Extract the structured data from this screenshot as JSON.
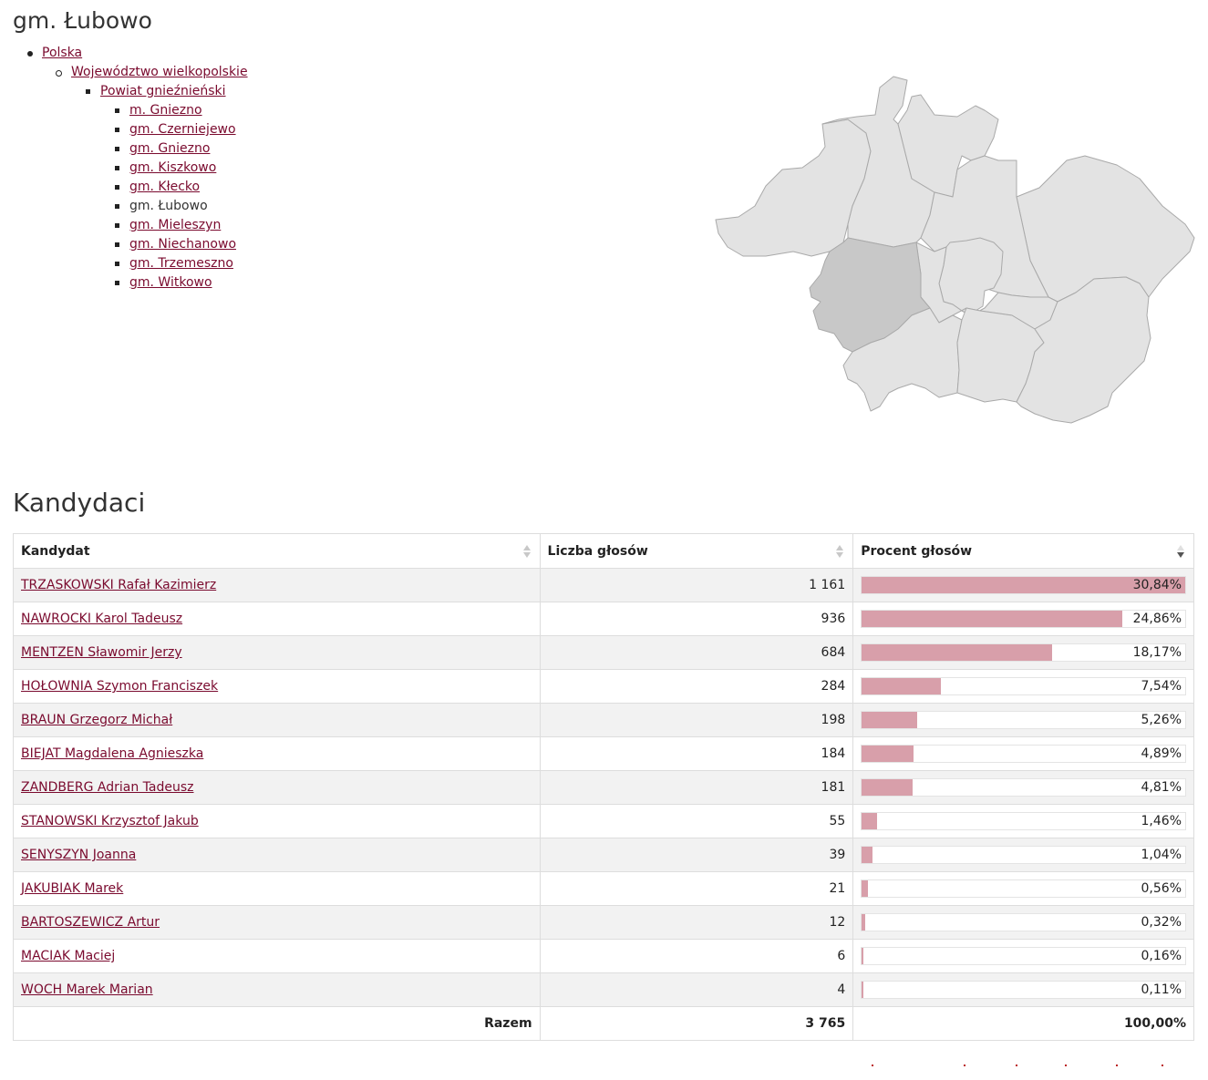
{
  "page": {
    "title": "gm. Łubowo"
  },
  "breadcrumb": {
    "country": "Polska",
    "voivodeship": "Województwo wielkopolskie",
    "county": "Powiat gnieźnieński",
    "communes": [
      {
        "label": "m. Gniezno",
        "link": true
      },
      {
        "label": "gm. Czerniejewo",
        "link": true
      },
      {
        "label": "gm. Gniezno",
        "link": true
      },
      {
        "label": "gm. Kiszkowo",
        "link": true
      },
      {
        "label": "gm. Kłecko",
        "link": true
      },
      {
        "label": "gm. Łubowo",
        "link": false
      },
      {
        "label": "gm. Mieleszyn",
        "link": true
      },
      {
        "label": "gm. Niechanowo",
        "link": true
      },
      {
        "label": "gm. Trzemeszno",
        "link": true
      },
      {
        "label": "gm. Witkowo",
        "link": true
      }
    ]
  },
  "map": {
    "fill_default": "#e3e3e3",
    "fill_selected": "#c8c8c8",
    "stroke": "#a9a9a9"
  },
  "section": {
    "title": "Kandydaci"
  },
  "table": {
    "headers": {
      "candidate": "Kandydat",
      "votes": "Liczba głosów",
      "percent": "Procent głosów"
    },
    "rows": [
      {
        "name": "TRZASKOWSKI Rafał Kazimierz",
        "votes": "1 161",
        "percent": "30,84%",
        "share": 30.84
      },
      {
        "name": "NAWROCKI Karol Tadeusz",
        "votes": "936",
        "percent": "24,86%",
        "share": 24.86
      },
      {
        "name": "MENTZEN Sławomir Jerzy",
        "votes": "684",
        "percent": "18,17%",
        "share": 18.17
      },
      {
        "name": "HOŁOWNIA Szymon Franciszek",
        "votes": "284",
        "percent": "7,54%",
        "share": 7.54
      },
      {
        "name": "BRAUN Grzegorz Michał",
        "votes": "198",
        "percent": "5,26%",
        "share": 5.26
      },
      {
        "name": "BIEJAT Magdalena Agnieszka",
        "votes": "184",
        "percent": "4,89%",
        "share": 4.89
      },
      {
        "name": "ZANDBERG Adrian Tadeusz",
        "votes": "181",
        "percent": "4,81%",
        "share": 4.81
      },
      {
        "name": "STANOWSKI Krzysztof Jakub",
        "votes": "55",
        "percent": "1,46%",
        "share": 1.46
      },
      {
        "name": "SENYSZYN Joanna",
        "votes": "39",
        "percent": "1,04%",
        "share": 1.04
      },
      {
        "name": "JAKUBIAK Marek",
        "votes": "21",
        "percent": "0,56%",
        "share": 0.56
      },
      {
        "name": "BARTOSZEWICZ Artur",
        "votes": "12",
        "percent": "0,32%",
        "share": 0.32
      },
      {
        "name": "MACIAK Maciej",
        "votes": "6",
        "percent": "0,16%",
        "share": 0.16
      },
      {
        "name": "WOCH Marek Marian",
        "votes": "4",
        "percent": "0,11%",
        "share": 0.11
      }
    ],
    "bar_scale_max": 30.84,
    "footer": {
      "label": "Razem",
      "votes": "3 765",
      "percent": "100,00%"
    },
    "bar_color": "#d89faa",
    "link_color": "#7a0a2e"
  }
}
